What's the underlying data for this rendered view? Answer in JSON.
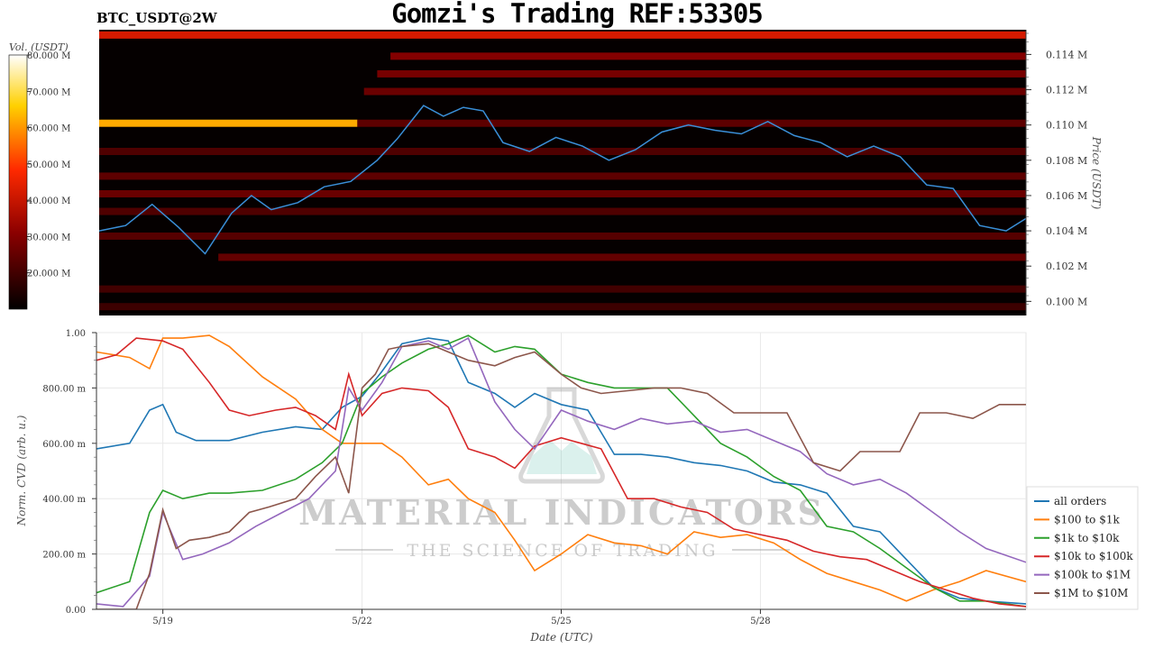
{
  "header": {
    "title": "Gomzi's Trading REF:53305",
    "pair": "BTC_USDT@2W"
  },
  "watermark": {
    "brand": "MATERIAL INDICATORS",
    "tagline": "THE SCIENCE OF TRADING"
  },
  "chart_data": [
    {
      "type": "heatmap",
      "subtype": "order book liquidity heatmap with price line",
      "colorbar": {
        "label": "Vol. (USDT)",
        "ticks": [
          "20.000 M",
          "30.000 M",
          "40.000 M",
          "50.000 M",
          "60.000 M",
          "70.000 M",
          "80.000 M"
        ],
        "range": [
          10,
          80
        ],
        "colors": [
          "#000000",
          "#8b0000",
          "#ff2a00",
          "#ffd000",
          "#ffffff"
        ]
      },
      "ylabel": "Price (USDT)",
      "y_ticks": [
        "0.100 M",
        "0.102 M",
        "0.104 M",
        "0.106 M",
        "0.108 M",
        "0.110 M",
        "0.112 M",
        "0.114 M"
      ],
      "ylim": [
        0.0992,
        0.1154
      ],
      "price_line_color": "#3a8fd8",
      "price_series": {
        "x": [
          0,
          0.4,
          0.8,
          1.2,
          1.6,
          2.0,
          2.3,
          2.6,
          3.0,
          3.4,
          3.8,
          4.2,
          4.5,
          4.9,
          5.2,
          5.5,
          5.8,
          6.1,
          6.5,
          6.9,
          7.3,
          7.7,
          8.1,
          8.5,
          8.9,
          9.3,
          9.7,
          10.1,
          10.5,
          10.9,
          11.3,
          11.7,
          12.1,
          12.5,
          12.9,
          13.3,
          13.7,
          14.0
        ],
        "y": [
          0.104,
          0.1043,
          0.1055,
          0.1042,
          0.1027,
          0.105,
          0.106,
          0.1052,
          0.1056,
          0.1065,
          0.1068,
          0.108,
          0.1092,
          0.1111,
          0.1105,
          0.111,
          0.1108,
          0.109,
          0.1085,
          0.1093,
          0.1088,
          0.108,
          0.1086,
          0.1096,
          0.11,
          0.1097,
          0.1095,
          0.1102,
          0.1094,
          0.109,
          0.1082,
          0.1088,
          0.1082,
          0.1066,
          0.1064,
          0.1043,
          0.104,
          0.1047
        ]
      },
      "liquidity_bands": [
        {
          "price": 0.1151,
          "x0": 0.0,
          "x1": 14.0,
          "volume": 42
        },
        {
          "price": 0.1139,
          "x0": 4.4,
          "x1": 14.0,
          "volume": 30
        },
        {
          "price": 0.1129,
          "x0": 4.2,
          "x1": 14.0,
          "volume": 28
        },
        {
          "price": 0.1119,
          "x0": 4.0,
          "x1": 14.0,
          "volume": 26
        },
        {
          "price": 0.1101,
          "x0": 0.0,
          "x1": 3.9,
          "volume": 62
        },
        {
          "price": 0.1101,
          "x0": 3.9,
          "x1": 14.0,
          "volume": 24
        },
        {
          "price": 0.1085,
          "x0": 0.0,
          "x1": 14.0,
          "volume": 22
        },
        {
          "price": 0.1071,
          "x0": 0.0,
          "x1": 14.0,
          "volume": 24
        },
        {
          "price": 0.1061,
          "x0": 0.0,
          "x1": 14.0,
          "volume": 26
        },
        {
          "price": 0.1051,
          "x0": 0.0,
          "x1": 14.0,
          "volume": 22
        },
        {
          "price": 0.1037,
          "x0": 0.0,
          "x1": 14.0,
          "volume": 23
        },
        {
          "price": 0.1025,
          "x0": 1.8,
          "x1": 14.0,
          "volume": 25
        },
        {
          "price": 0.1007,
          "x0": 0.0,
          "x1": 14.0,
          "volume": 20
        },
        {
          "price": 0.0997,
          "x0": 0.0,
          "x1": 14.0,
          "volume": 19
        }
      ],
      "color_scale_note": "volume in millions USDT"
    },
    {
      "type": "line",
      "xlabel": "Date (UTC)",
      "ylabel": "Norm. CVD (arb. u.)",
      "x_ticks": [
        {
          "x": 1,
          "label": "5/19"
        },
        {
          "x": 4,
          "label": "5/22"
        },
        {
          "x": 7,
          "label": "5/25"
        },
        {
          "x": 10,
          "label": "5/28"
        }
      ],
      "xlim": [
        0,
        14
      ],
      "y_ticks": [
        "0.00",
        "200.00 m",
        "400.00 m",
        "600.00 m",
        "800.00 m",
        "1.00"
      ],
      "ylim": [
        0,
        1
      ],
      "grid": true,
      "legend_position": "right",
      "series": [
        {
          "name": "all orders",
          "color": "#1f77b4",
          "x": [
            0,
            0.5,
            0.8,
            1.0,
            1.2,
            1.5,
            2.0,
            2.5,
            3.0,
            3.4,
            3.7,
            4.0,
            4.3,
            4.6,
            5.0,
            5.3,
            5.6,
            6.0,
            6.3,
            6.6,
            7.0,
            7.4,
            7.8,
            8.2,
            8.6,
            9.0,
            9.4,
            9.8,
            10.2,
            10.6,
            11.0,
            11.4,
            11.8,
            12.2,
            12.6,
            13.0,
            13.4,
            14.0
          ],
          "y": [
            0.58,
            0.6,
            0.72,
            0.74,
            0.64,
            0.61,
            0.61,
            0.64,
            0.66,
            0.65,
            0.73,
            0.77,
            0.86,
            0.96,
            0.98,
            0.97,
            0.82,
            0.78,
            0.73,
            0.78,
            0.74,
            0.72,
            0.56,
            0.56,
            0.55,
            0.53,
            0.52,
            0.5,
            0.46,
            0.45,
            0.42,
            0.3,
            0.28,
            0.18,
            0.08,
            0.04,
            0.03,
            0.02
          ]
        },
        {
          "name": "$100 to $1k",
          "color": "#ff7f0e",
          "x": [
            0,
            0.5,
            0.8,
            1.0,
            1.3,
            1.7,
            2.0,
            2.5,
            3.0,
            3.4,
            3.7,
            4.0,
            4.3,
            4.6,
            5.0,
            5.3,
            5.6,
            6.0,
            6.3,
            6.6,
            7.0,
            7.4,
            7.8,
            8.2,
            8.6,
            9.0,
            9.4,
            9.8,
            10.2,
            10.6,
            11.0,
            11.4,
            11.8,
            12.2,
            12.6,
            13.0,
            13.4,
            14.0
          ],
          "y": [
            0.93,
            0.91,
            0.87,
            0.98,
            0.98,
            0.99,
            0.95,
            0.84,
            0.76,
            0.65,
            0.6,
            0.6,
            0.6,
            0.55,
            0.45,
            0.47,
            0.4,
            0.35,
            0.25,
            0.14,
            0.2,
            0.27,
            0.24,
            0.23,
            0.2,
            0.28,
            0.26,
            0.27,
            0.24,
            0.18,
            0.13,
            0.1,
            0.07,
            0.03,
            0.07,
            0.1,
            0.14,
            0.1
          ]
        },
        {
          "name": "$1k to $10k",
          "color": "#2ca02c",
          "x": [
            0,
            0.5,
            0.8,
            1.0,
            1.3,
            1.7,
            2.0,
            2.5,
            3.0,
            3.4,
            3.7,
            4.0,
            4.3,
            4.6,
            5.0,
            5.3,
            5.6,
            6.0,
            6.3,
            6.6,
            7.0,
            7.4,
            7.8,
            8.2,
            8.6,
            9.0,
            9.4,
            9.8,
            10.2,
            10.6,
            11.0,
            11.4,
            11.8,
            12.2,
            12.6,
            13.0,
            13.4,
            14.0
          ],
          "y": [
            0.06,
            0.1,
            0.35,
            0.43,
            0.4,
            0.42,
            0.42,
            0.43,
            0.47,
            0.53,
            0.6,
            0.78,
            0.84,
            0.89,
            0.94,
            0.96,
            0.99,
            0.93,
            0.95,
            0.94,
            0.85,
            0.82,
            0.8,
            0.8,
            0.8,
            0.7,
            0.6,
            0.55,
            0.48,
            0.43,
            0.3,
            0.28,
            0.22,
            0.15,
            0.08,
            0.03,
            0.03,
            0.01
          ]
        },
        {
          "name": "$10k to $100k",
          "color": "#d62728",
          "x": [
            0,
            0.3,
            0.6,
            1.0,
            1.3,
            1.7,
            2.0,
            2.3,
            2.7,
            3.0,
            3.3,
            3.6,
            3.8,
            4.0,
            4.3,
            4.6,
            5.0,
            5.3,
            5.6,
            6.0,
            6.3,
            6.6,
            7.0,
            7.3,
            7.6,
            8.0,
            8.4,
            8.8,
            9.2,
            9.6,
            10.0,
            10.4,
            10.8,
            11.2,
            11.6,
            12.0,
            12.4,
            12.8,
            13.2,
            13.6,
            14.0
          ],
          "y": [
            0.9,
            0.92,
            0.98,
            0.97,
            0.94,
            0.82,
            0.72,
            0.7,
            0.72,
            0.73,
            0.7,
            0.65,
            0.85,
            0.7,
            0.78,
            0.8,
            0.79,
            0.73,
            0.58,
            0.55,
            0.51,
            0.59,
            0.62,
            0.6,
            0.58,
            0.4,
            0.4,
            0.37,
            0.35,
            0.29,
            0.27,
            0.25,
            0.21,
            0.19,
            0.18,
            0.14,
            0.1,
            0.07,
            0.04,
            0.02,
            0.01
          ]
        },
        {
          "name": "$100k to $1M",
          "color": "#9467bd",
          "x": [
            0,
            0.4,
            0.8,
            1.0,
            1.3,
            1.6,
            2.0,
            2.4,
            2.8,
            3.2,
            3.6,
            3.8,
            4.0,
            4.3,
            4.6,
            5.0,
            5.3,
            5.6,
            6.0,
            6.3,
            6.6,
            7.0,
            7.4,
            7.8,
            8.2,
            8.6,
            9.0,
            9.4,
            9.8,
            10.2,
            10.6,
            11.0,
            11.4,
            11.8,
            12.2,
            12.6,
            13.0,
            13.4,
            14.0
          ],
          "y": [
            0.02,
            0.01,
            0.12,
            0.35,
            0.18,
            0.2,
            0.24,
            0.3,
            0.35,
            0.4,
            0.5,
            0.8,
            0.72,
            0.82,
            0.95,
            0.97,
            0.94,
            0.98,
            0.75,
            0.65,
            0.58,
            0.72,
            0.68,
            0.65,
            0.69,
            0.67,
            0.68,
            0.64,
            0.65,
            0.61,
            0.57,
            0.49,
            0.45,
            0.47,
            0.42,
            0.35,
            0.28,
            0.22,
            0.17
          ]
        },
        {
          "name": "$1M to $10M",
          "color": "#8c564b",
          "x": [
            0,
            0.3,
            0.6,
            0.8,
            1.0,
            1.2,
            1.4,
            1.7,
            2.0,
            2.3,
            2.6,
            3.0,
            3.3,
            3.6,
            3.8,
            4.0,
            4.2,
            4.4,
            4.6,
            5.0,
            5.3,
            5.6,
            6.0,
            6.3,
            6.6,
            7.0,
            7.3,
            7.6,
            8.0,
            8.4,
            8.8,
            9.2,
            9.6,
            10.0,
            10.4,
            10.8,
            11.2,
            11.5,
            11.8,
            12.1,
            12.4,
            12.8,
            13.2,
            13.6,
            14.0
          ],
          "y": [
            0.0,
            0.0,
            0.0,
            0.13,
            0.36,
            0.22,
            0.25,
            0.26,
            0.28,
            0.35,
            0.37,
            0.4,
            0.48,
            0.55,
            0.42,
            0.8,
            0.85,
            0.94,
            0.95,
            0.96,
            0.93,
            0.9,
            0.88,
            0.91,
            0.93,
            0.85,
            0.8,
            0.78,
            0.79,
            0.8,
            0.8,
            0.78,
            0.71,
            0.71,
            0.71,
            0.53,
            0.5,
            0.57,
            0.57,
            0.57,
            0.71,
            0.71,
            0.69,
            0.74,
            0.74
          ]
        }
      ]
    }
  ]
}
